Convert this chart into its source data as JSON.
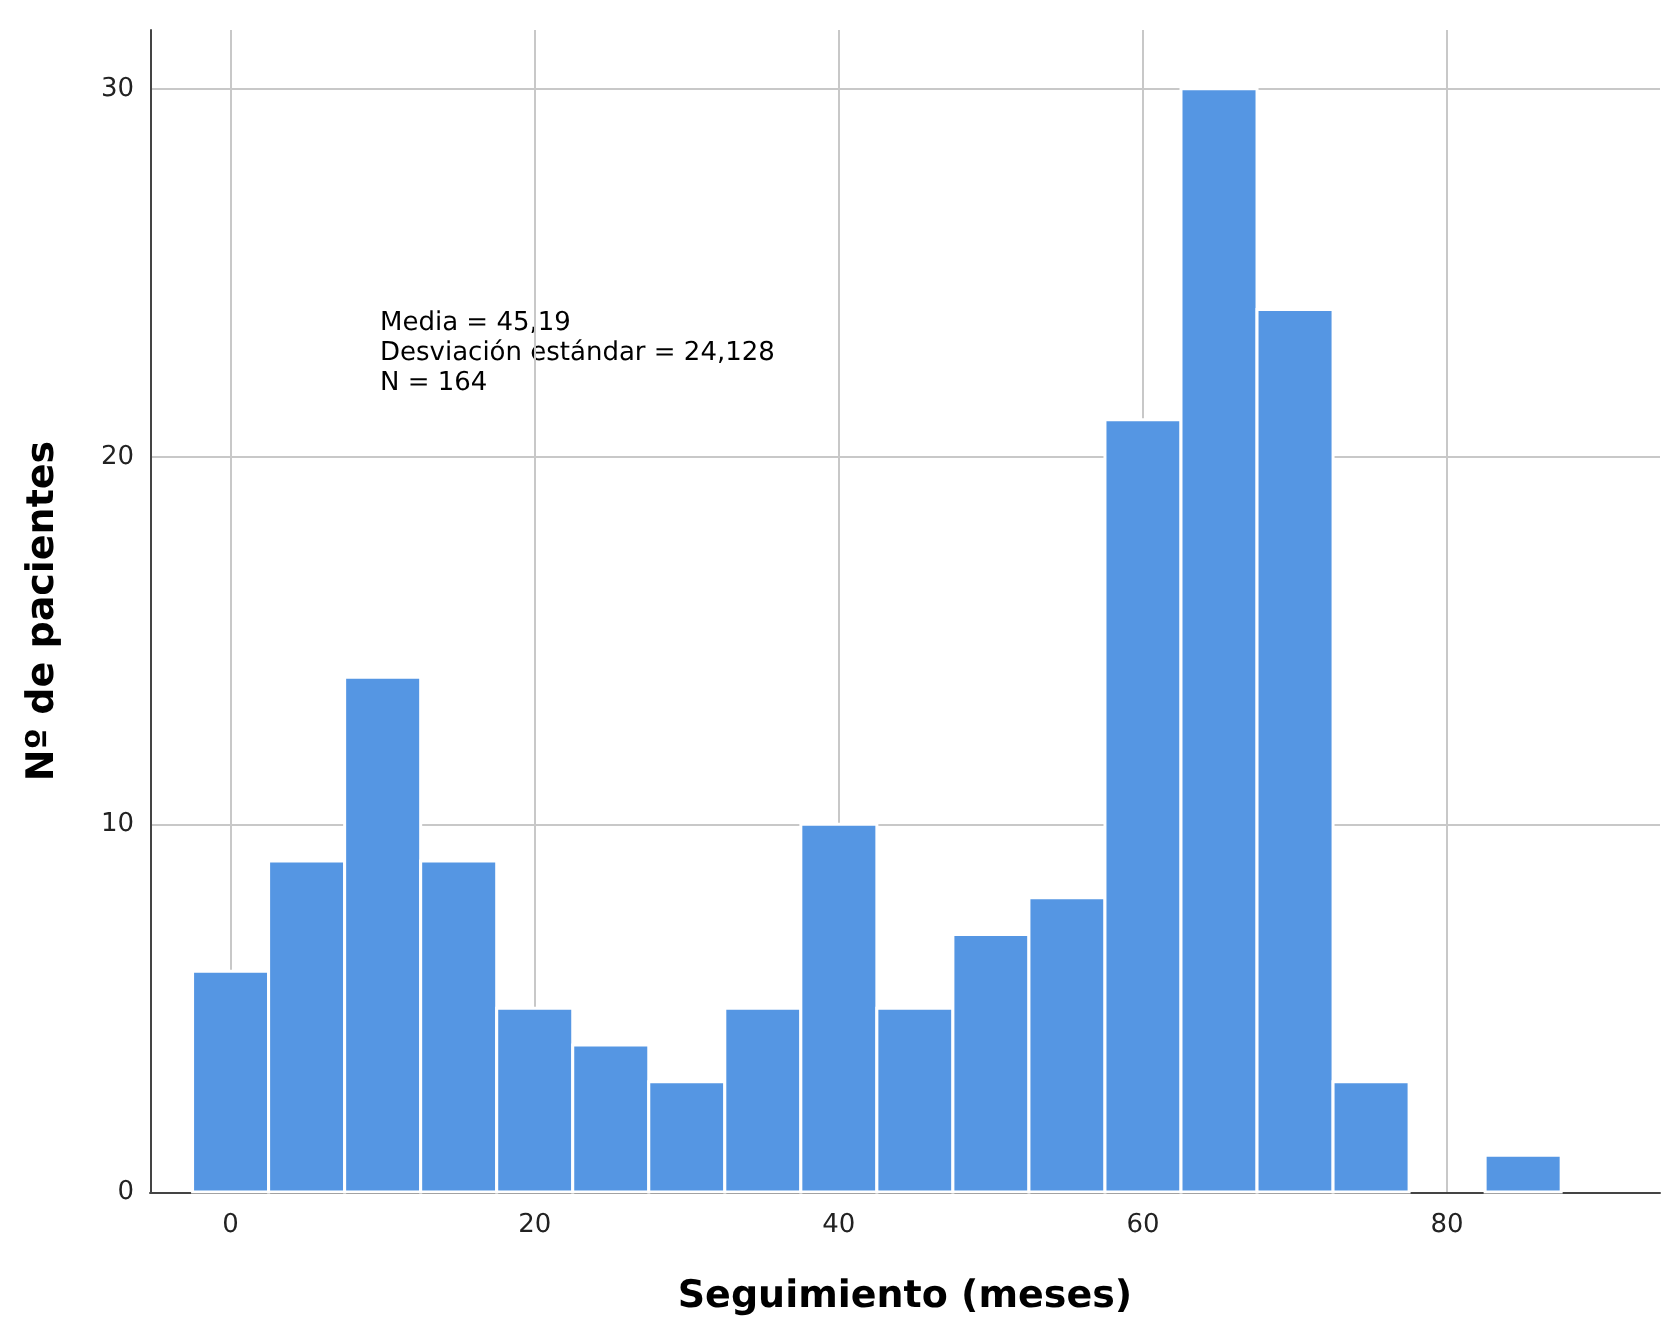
{
  "chart_data": {
    "type": "histogram",
    "xlabel": "Seguimiento (meses)",
    "ylabel": "Nº de pacientes",
    "annotations": [
      "Media = 45,19",
      "Desviación estándar = 24,128",
      "N = 164"
    ],
    "bins": [
      -2.5,
      2.5,
      7.5,
      12.5,
      17.5,
      22.5,
      27.5,
      32.5,
      37.5,
      42.5,
      47.5,
      52.5,
      57.5,
      62.5,
      67.5,
      72.5,
      77.5,
      82.5,
      87.5
    ],
    "values": [
      6,
      9,
      14,
      9,
      5,
      4,
      3,
      5,
      10,
      5,
      7,
      8,
      21,
      30,
      24,
      3,
      0,
      1
    ],
    "color": "#5596e3",
    "xlim": [
      -5.3,
      94
    ],
    "xticks": [
      0,
      20,
      40,
      60,
      80
    ],
    "ylim": [
      0,
      31.6
    ],
    "yticks": [
      0,
      10,
      20,
      30
    ],
    "grid": true
  }
}
